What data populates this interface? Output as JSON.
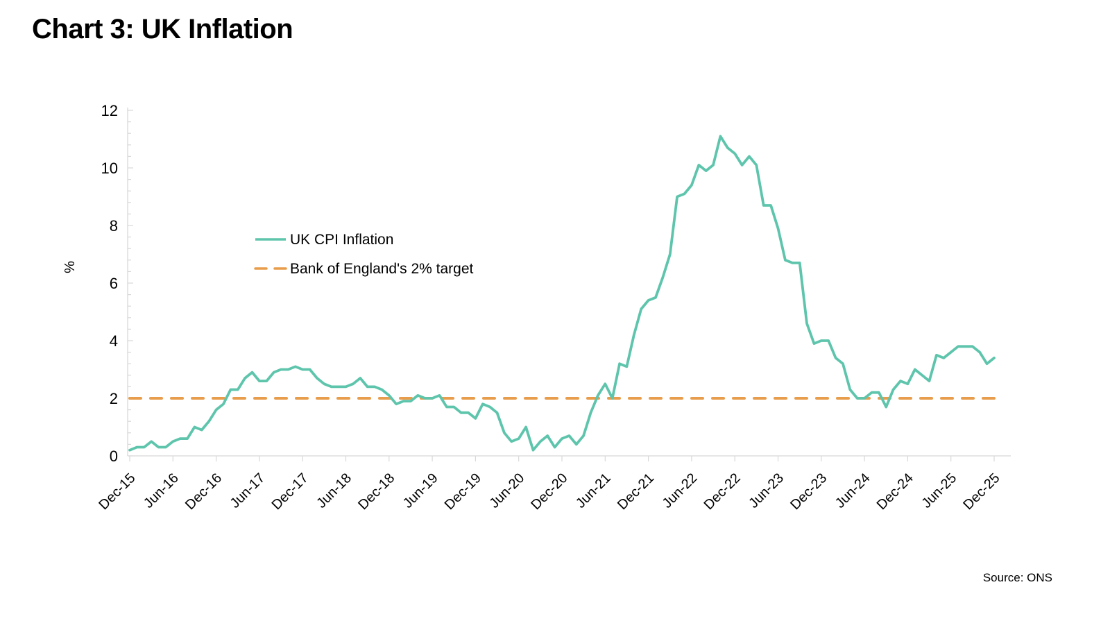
{
  "page": {
    "title": "Chart 3: UK Inflation",
    "source": "Source: ONS"
  },
  "chart_data": {
    "type": "line",
    "title": "Chart 3: UK Inflation",
    "xlabel": "",
    "ylabel": "%",
    "ylim": [
      0,
      12
    ],
    "yticks": [
      0,
      2,
      4,
      6,
      8,
      10,
      12
    ],
    "grid": false,
    "legend_position": "inside-upper-left",
    "x_frequency": "monthly",
    "x_start": "Dec-15",
    "x_end": "Dec-25",
    "xtick_labels": [
      "Dec-15",
      "Jun-16",
      "Dec-16",
      "Jun-17",
      "Dec-17",
      "Jun-18",
      "Dec-18",
      "Jun-19",
      "Dec-19",
      "Jun-20",
      "Dec-20",
      "Jun-21",
      "Dec-21",
      "Jun-22",
      "Dec-22",
      "Jun-23",
      "Dec-23",
      "Jun-24",
      "Dec-24",
      "Jun-25",
      "Dec-25"
    ],
    "colors": {
      "cpi": "#5EC5AC",
      "target": "#E89D4C",
      "axis": "#D8D8D8",
      "text": "#000000"
    },
    "series": [
      {
        "name": "UK CPI Inflation",
        "type": "line",
        "style": "solid",
        "color_key": "cpi",
        "values": [
          0.2,
          0.3,
          0.3,
          0.5,
          0.3,
          0.3,
          0.5,
          0.6,
          0.6,
          1.0,
          0.9,
          1.2,
          1.6,
          1.8,
          2.3,
          2.3,
          2.7,
          2.9,
          2.6,
          2.6,
          2.9,
          3.0,
          3.0,
          3.1,
          3.0,
          3.0,
          2.7,
          2.5,
          2.4,
          2.4,
          2.4,
          2.5,
          2.7,
          2.4,
          2.4,
          2.3,
          2.1,
          1.8,
          1.9,
          1.9,
          2.1,
          2.0,
          2.0,
          2.1,
          1.7,
          1.7,
          1.5,
          1.5,
          1.3,
          1.8,
          1.7,
          1.5,
          0.8,
          0.5,
          0.6,
          1.0,
          0.2,
          0.5,
          0.7,
          0.3,
          0.6,
          0.7,
          0.4,
          0.7,
          1.5,
          2.1,
          2.5,
          2.0,
          3.2,
          3.1,
          4.2,
          5.1,
          5.4,
          5.5,
          6.2,
          7.0,
          9.0,
          9.1,
          9.4,
          10.1,
          9.9,
          10.1,
          11.1,
          10.7,
          10.5,
          10.1,
          10.4,
          10.1,
          8.7,
          8.7,
          7.9,
          6.8,
          6.7,
          6.7,
          4.6,
          3.9,
          4.0,
          4.0,
          3.4,
          3.2,
          2.3,
          2.0,
          2.0,
          2.2,
          2.2,
          1.7,
          2.3,
          2.6,
          2.5,
          3.0,
          2.8,
          2.6,
          3.5,
          3.4,
          3.6,
          3.8,
          3.8,
          3.8,
          3.6,
          3.2,
          3.4
        ]
      },
      {
        "name": "Bank of England's 2% target",
        "type": "hline",
        "style": "dashed",
        "color_key": "target",
        "value": 2
      }
    ]
  }
}
